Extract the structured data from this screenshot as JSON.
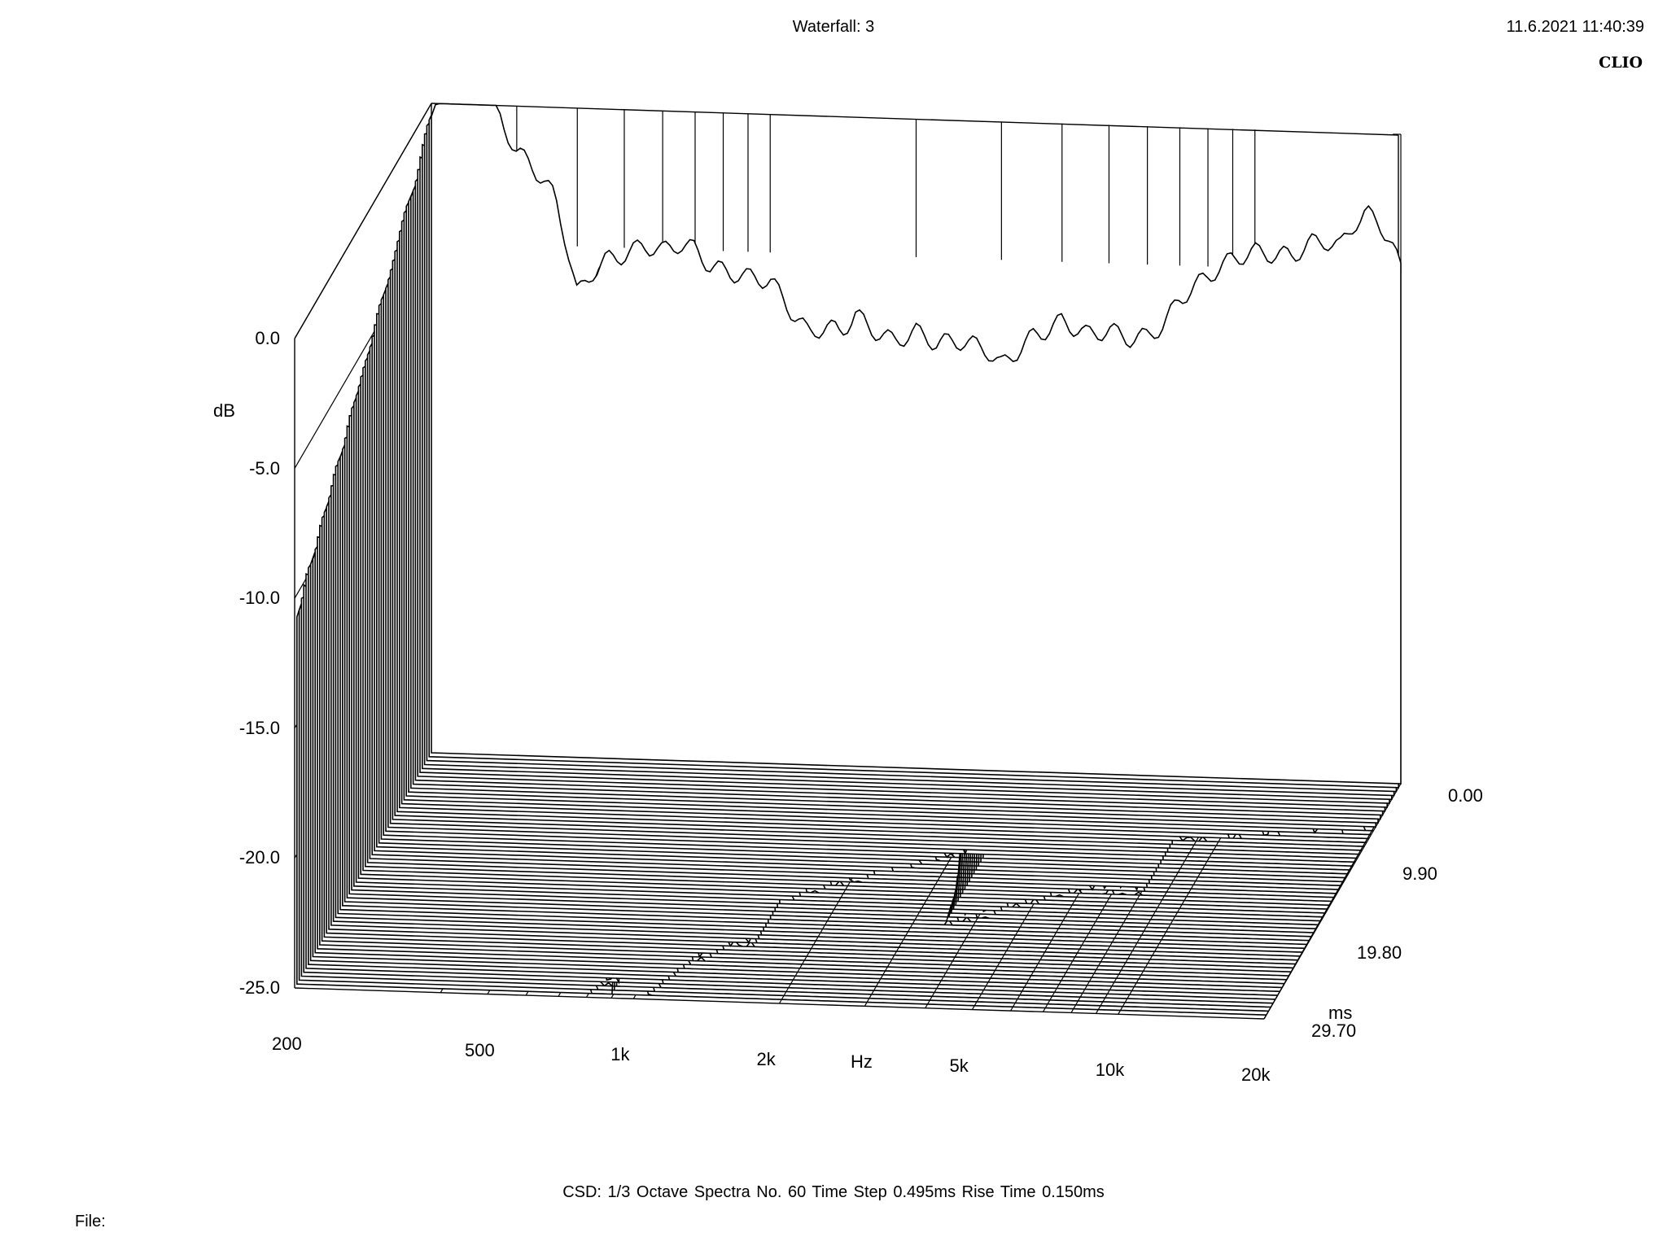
{
  "header": {
    "title": "Waterfall: 3",
    "datetime": "11.6.2021 11:40:39",
    "brand": "CLIO"
  },
  "footer": {
    "settings": "CSD:   1/3 Octave   Spectra No. 60   Time Step 0.495ms   Rise Time 0.150ms",
    "file_label": "File:"
  },
  "chart_data": {
    "type": "waterfall",
    "title": "Waterfall: 3",
    "ylabel": "dB",
    "xlabel": "Hz",
    "zlabel": "ms",
    "x_scale": "log",
    "xlim": [
      200,
      20000
    ],
    "ylim": [
      -25,
      0
    ],
    "zlim": [
      0,
      29.7
    ],
    "x_ticks": [
      "200",
      "500",
      "1k",
      "2k",
      "5k",
      "10k",
      "20k"
    ],
    "y_ticks": [
      "0.0",
      "-5.0",
      "-10.0",
      "-15.0",
      "-20.0",
      "-25.0"
    ],
    "z_ticks": [
      "0.00",
      "9.90",
      "19.80",
      "29.70"
    ],
    "spectra_count": 60,
    "time_step_ms": 0.495,
    "rise_time_ms": 0.15,
    "first_spectrum": {
      "freq_hz": [
        200,
        220,
        240,
        260,
        280,
        300,
        320,
        340,
        360,
        380,
        400,
        430,
        460,
        500,
        550,
        600,
        650,
        700,
        750,
        800,
        900,
        1000,
        1100,
        1200,
        1300,
        1400,
        1500,
        1600,
        1800,
        2000,
        2200,
        2500,
        2800,
        3000,
        3200,
        3500,
        3800,
        4000,
        4500,
        5000,
        5500,
        6000,
        6500,
        7000,
        8000,
        9000,
        10000,
        11000,
        12000,
        13000,
        14000,
        15000,
        16000,
        17000,
        18000,
        19000,
        20000
      ],
      "db": [
        -0.5,
        0.4,
        0.8,
        0.5,
        -0.6,
        -1.8,
        -2.2,
        -2.8,
        -3.5,
        -5.2,
        -7.2,
        -6.3,
        -5.8,
        -5.6,
        -5.2,
        -5.4,
        -5.1,
        -5.3,
        -5.9,
        -6.1,
        -6.3,
        -6.4,
        -7.5,
        -8.4,
        -8.1,
        -8.3,
        -7.6,
        -8.1,
        -8.6,
        -8.2,
        -8.6,
        -8.5,
        -8.8,
        -9.4,
        -8.9,
        -8.2,
        -7.9,
        -7.6,
        -8.1,
        -7.9,
        -8.2,
        -8.1,
        -7.6,
        -6.6,
        -5.7,
        -5.0,
        -4.7,
        -4.8,
        -4.8,
        -4.3,
        -4.2,
        -4.4,
        -3.5,
        -3.1,
        -3.4,
        -4.1,
        -5.2
      ]
    }
  }
}
